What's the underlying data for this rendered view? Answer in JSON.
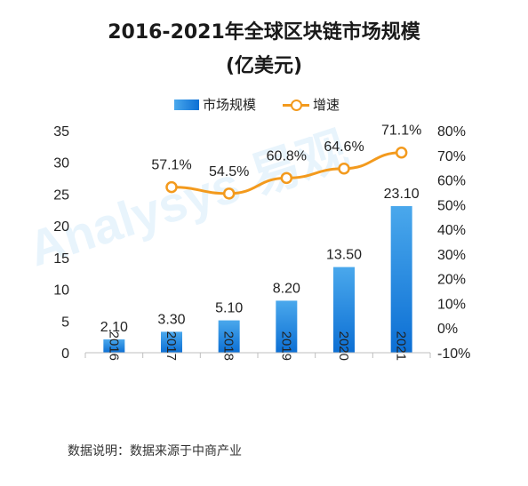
{
  "title_line1": "2016-2021年全球区块链市场规模",
  "title_line2": "(亿美元)",
  "source": "数据说明：数据来源于中商产业",
  "watermark": "Analysys 易观",
  "colors": {
    "bar_top": "#4aa8ec",
    "bar_bottom": "#0c6fd4",
    "line": "#f39a1d",
    "axis": "#bfbfbf"
  },
  "chart_data": {
    "type": "bar",
    "categories": [
      "2016",
      "2017",
      "2018",
      "2019",
      "2020",
      "2021"
    ],
    "series": [
      {
        "name": "市场规模",
        "type": "bar",
        "axis": "left",
        "values": [
          2.1,
          3.3,
          5.1,
          8.2,
          13.5,
          23.1
        ],
        "labels": [
          "2.10",
          "3.30",
          "5.10",
          "8.20",
          "13.50",
          "23.10"
        ]
      },
      {
        "name": "增速",
        "type": "line",
        "axis": "right",
        "values": [
          null,
          57.1,
          54.5,
          60.8,
          64.6,
          71.1
        ],
        "labels": [
          "",
          "57.1%",
          "54.5%",
          "60.8%",
          "64.6%",
          "71.1%"
        ]
      }
    ],
    "y_left": {
      "lim": [
        0,
        35
      ],
      "ticks": [
        "0",
        "5",
        "10",
        "15",
        "20",
        "25",
        "30",
        "35"
      ]
    },
    "y_right": {
      "lim": [
        -10,
        80
      ],
      "ticks": [
        "-10%",
        "0%",
        "10%",
        "20%",
        "30%",
        "40%",
        "50%",
        "60%",
        "70%",
        "80%"
      ]
    },
    "legend": "top-center",
    "grid": false
  }
}
